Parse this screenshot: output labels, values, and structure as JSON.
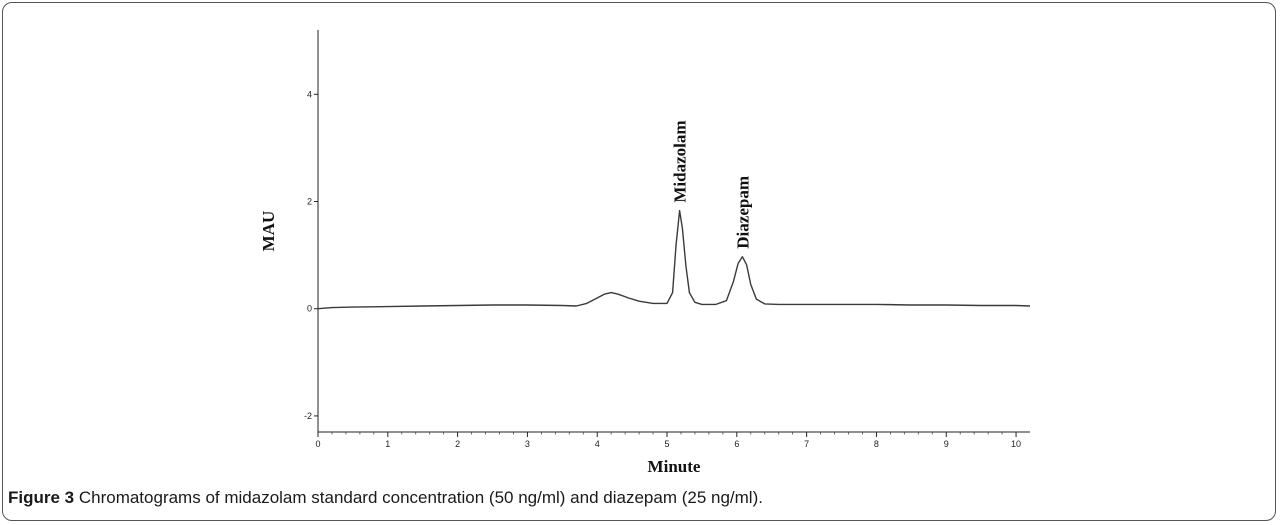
{
  "caption": {
    "label": "Figure 3",
    "text": " Chromatograms of midazolam standard concentration (50 ng/ml) and diazepam (25 ng/ml)."
  },
  "chart_data": {
    "type": "line",
    "xlabel": "Minute",
    "ylabel": "MAU",
    "xlim": [
      0,
      10.2
    ],
    "ylim": [
      -2.3,
      5.2
    ],
    "xticks": [
      "0",
      "1",
      "2",
      "3",
      "4",
      "5",
      "6",
      "7",
      "8",
      "9",
      "10"
    ],
    "yticks": [
      "-2",
      "0",
      "2",
      "4"
    ],
    "grid": false,
    "line_color": "#3a3a3a",
    "series": [
      {
        "x": [
          0,
          0.2,
          0.5,
          1.0,
          1.5,
          2.0,
          2.5,
          3.0,
          3.5,
          3.7,
          3.85,
          4.0,
          4.1,
          4.2,
          4.3,
          4.45,
          4.6,
          4.8,
          5.0,
          5.08,
          5.13,
          5.18,
          5.22,
          5.27,
          5.32,
          5.4,
          5.5,
          5.7,
          5.85,
          5.95,
          6.02,
          6.08,
          6.14,
          6.2,
          6.28,
          6.4,
          6.6,
          7.0,
          7.5,
          8.0,
          8.5,
          9.0,
          9.5,
          10.0,
          10.2
        ],
        "y": [
          0.0,
          0.02,
          0.03,
          0.04,
          0.05,
          0.06,
          0.07,
          0.07,
          0.06,
          0.05,
          0.1,
          0.2,
          0.27,
          0.3,
          0.27,
          0.2,
          0.14,
          0.1,
          0.1,
          0.3,
          1.2,
          1.83,
          1.5,
          0.8,
          0.3,
          0.12,
          0.08,
          0.08,
          0.15,
          0.5,
          0.85,
          0.97,
          0.82,
          0.45,
          0.18,
          0.09,
          0.08,
          0.08,
          0.08,
          0.08,
          0.07,
          0.07,
          0.06,
          0.06,
          0.05
        ]
      }
    ],
    "annotations": [
      {
        "text": "Midazolam",
        "x": 5.18,
        "y": 1.83
      },
      {
        "text": "Diazepam",
        "x": 6.08,
        "y": 0.97
      }
    ]
  }
}
